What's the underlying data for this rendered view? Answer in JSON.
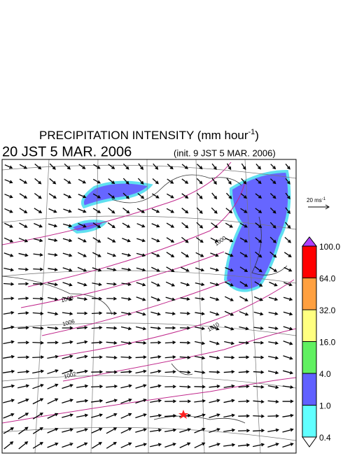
{
  "header": {
    "title": "PRECIPITATION INTENSITY (mm hour",
    "title_exponent": "-1",
    "title_close": ")",
    "valid_time": "20 JST 5 MAR. 2006",
    "init_time": "(init. 9 JST 5 MAR. 2006)"
  },
  "wind_reference": {
    "label": "20 ms",
    "exponent": "-1"
  },
  "colorbar": {
    "levels": [
      "100.0",
      "64.0",
      "32.0",
      "16.0",
      "4.0",
      "1.0",
      "0.4"
    ],
    "colors": [
      "#ff0000",
      "#ffa040",
      "#ffff80",
      "#60f060",
      "#6060ff",
      "#60ffff",
      "#ffffff"
    ],
    "over_color": "#b040ff"
  },
  "contour_labels": [
    "1000",
    "1008",
    "1010",
    "1006",
    "1002"
  ]
}
